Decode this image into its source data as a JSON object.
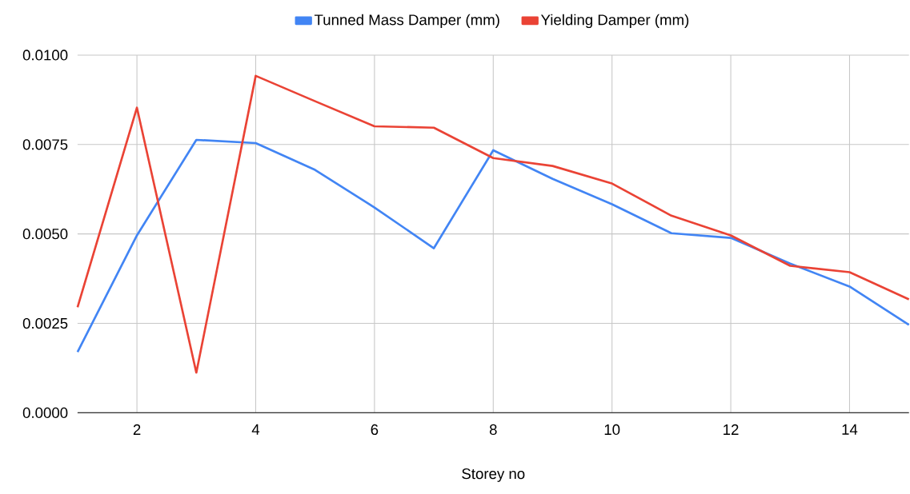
{
  "chart_data": {
    "type": "line",
    "xlabel": "Storey no",
    "legend": "top",
    "grid": true,
    "x": [
      1,
      2,
      3,
      4,
      5,
      6,
      7,
      8,
      9,
      10,
      11,
      12,
      13,
      14,
      15
    ],
    "series": [
      {
        "name": "Tunned Mass Damper (mm)",
        "color": "#4285f4",
        "values": [
          0.0017,
          0.00496,
          0.00763,
          0.00754,
          0.00679,
          0.00574,
          0.0046,
          0.00734,
          0.00654,
          0.00583,
          0.00502,
          0.00489,
          0.00417,
          0.00353,
          0.00246
        ]
      },
      {
        "name": "Yielding Damper (mm)",
        "color": "#ea4335",
        "values": [
          0.00295,
          0.00853,
          0.00112,
          0.00942,
          0.00871,
          0.00801,
          0.00797,
          0.00712,
          0.0069,
          0.00641,
          0.00551,
          0.00496,
          0.00411,
          0.00393,
          0.00317
        ]
      }
    ],
    "xlim": [
      1,
      15
    ],
    "ylim": [
      0,
      0.01
    ],
    "xticks": [
      2,
      4,
      6,
      8,
      10,
      12,
      14
    ],
    "yticks": [
      {
        "value": 0,
        "label": "0.0000"
      },
      {
        "value": 0.0025,
        "label": "0.0025"
      },
      {
        "value": 0.005,
        "label": "0.0050"
      },
      {
        "value": 0.0075,
        "label": "0.0075"
      },
      {
        "value": 0.01,
        "label": "0.0100"
      }
    ]
  }
}
